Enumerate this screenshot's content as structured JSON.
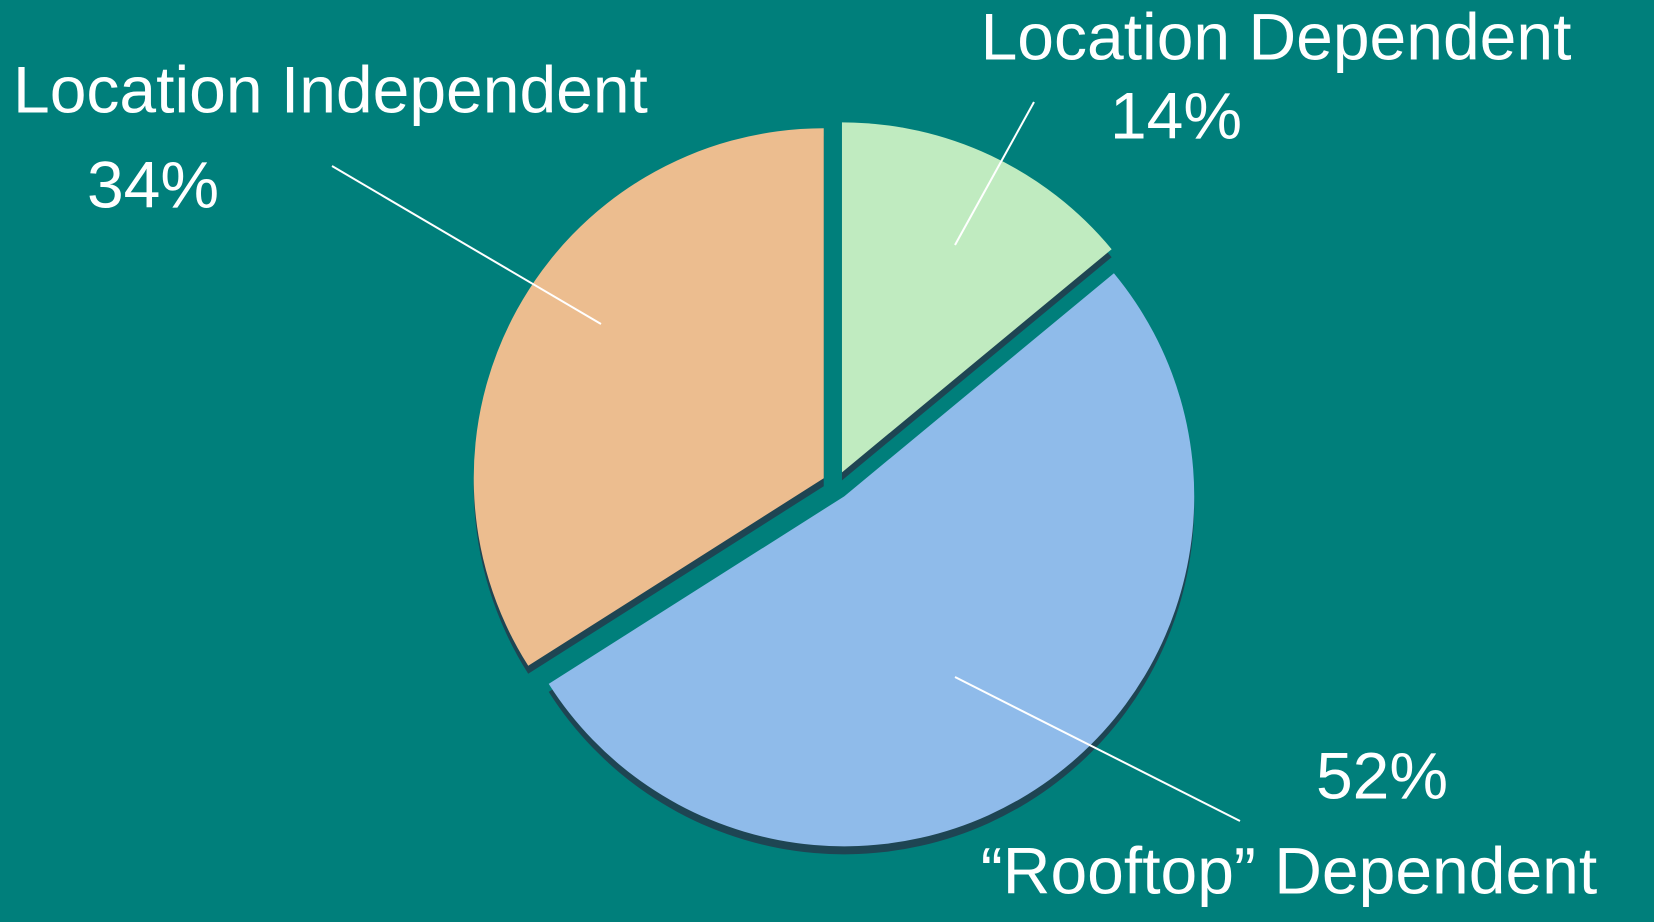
{
  "chart_data": {
    "type": "pie",
    "categories": [
      "Location Dependent",
      "“Rooftop” Dependent",
      "Location Independent"
    ],
    "values": [
      14,
      52,
      34
    ],
    "value_labels": [
      "14%",
      "52%",
      "34%"
    ],
    "colors": [
      "#c0ebc0",
      "#8fbbea",
      "#ecbd8f"
    ]
  }
}
